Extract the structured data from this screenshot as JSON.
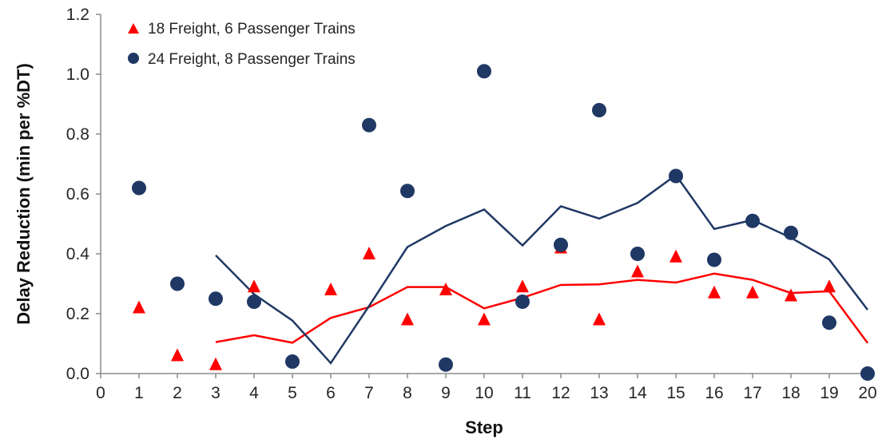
{
  "chart_data": {
    "type": "scatter",
    "title": "",
    "xlabel": "Step",
    "ylabel": "Delay Reduction (min per %DT)",
    "xlim": [
      0,
      20
    ],
    "ylim": [
      0,
      1.2
    ],
    "x_ticks": [
      "0",
      "1",
      "2",
      "3",
      "4",
      "5",
      "6",
      "7",
      "8",
      "9",
      "10",
      "11",
      "12",
      "13",
      "14",
      "15",
      "16",
      "17",
      "18",
      "19",
      "20"
    ],
    "y_ticks": [
      "0.0",
      "0.2",
      "0.4",
      "0.6",
      "0.8",
      "1.0",
      "1.2"
    ],
    "grid": false,
    "legend_position": "top-left",
    "series": [
      {
        "name": "18 Freight, 6 Passenger Trains",
        "color": "#ff0000",
        "marker": "triangle",
        "x": [
          1,
          2,
          3,
          4,
          5,
          6,
          7,
          8,
          9,
          10,
          11,
          12,
          13,
          14,
          15,
          16,
          17,
          18,
          19,
          20
        ],
        "y": [
          0.22,
          0.06,
          0.03,
          0.29,
          null,
          0.28,
          0.4,
          0.18,
          0.28,
          0.18,
          0.29,
          0.42,
          0.18,
          0.34,
          0.39,
          0.27,
          0.27,
          0.26,
          0.29,
          null
        ],
        "trend": {
          "x": [
            3,
            4,
            5,
            6,
            7,
            8,
            9,
            10,
            11,
            12,
            13,
            14,
            15,
            16,
            17,
            18,
            19,
            20
          ],
          "y": [
            0.105,
            0.128,
            0.103,
            0.186,
            0.222,
            0.289,
            0.289,
            0.218,
            0.253,
            0.296,
            0.298,
            0.313,
            0.304,
            0.334,
            0.313,
            0.269,
            0.275,
            0.102
          ]
        }
      },
      {
        "name": "24 Freight, 8 Passenger Trains",
        "color": "#1f3864",
        "marker": "circle",
        "x": [
          1,
          2,
          3,
          4,
          5,
          6,
          7,
          8,
          9,
          10,
          11,
          12,
          13,
          14,
          15,
          16,
          17,
          18,
          19,
          20
        ],
        "y": [
          0.62,
          0.3,
          0.25,
          0.24,
          0.04,
          null,
          0.83,
          0.61,
          0.03,
          1.01,
          0.24,
          0.43,
          0.88,
          0.4,
          0.66,
          0.38,
          0.51,
          0.47,
          0.17,
          0.0
        ],
        "trend": {
          "x": [
            3,
            4,
            5,
            6,
            7,
            8,
            9,
            10,
            11,
            12,
            13,
            14,
            15,
            16,
            17,
            18,
            19,
            20
          ],
          "y": [
            0.395,
            0.265,
            0.177,
            0.035,
            0.226,
            0.423,
            0.493,
            0.548,
            0.428,
            0.559,
            0.518,
            0.57,
            0.663,
            0.483,
            0.513,
            0.454,
            0.381,
            0.213
          ]
        }
      }
    ]
  }
}
